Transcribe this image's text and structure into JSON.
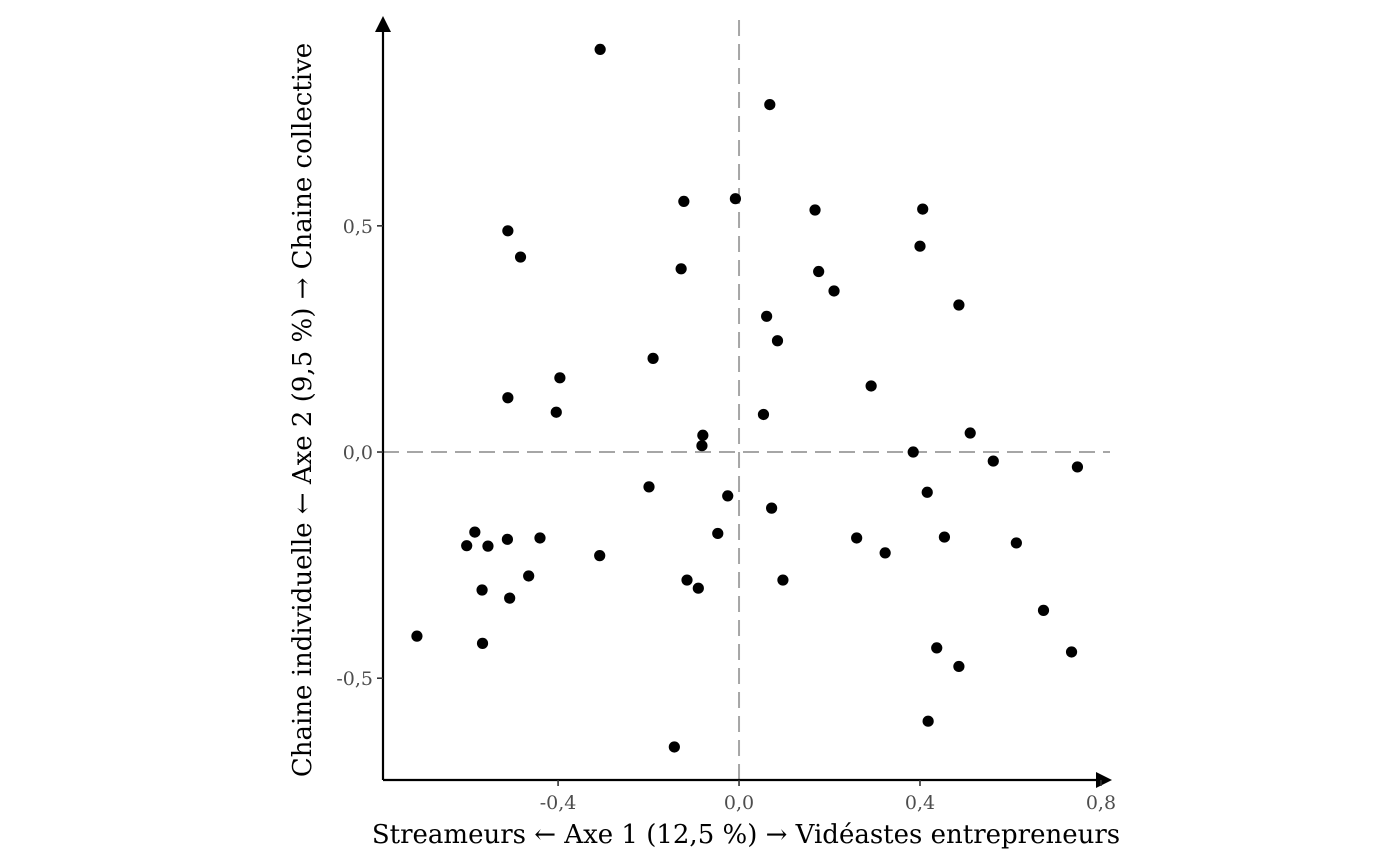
{
  "chart_data": {
    "type": "scatter",
    "title": "",
    "xlabel": "Streameurs ← Axe 1 (12,5 %) → Vidéastes entrepreneurs",
    "ylabel": "Chaine individuelle ← Axe 2 (9,5 %) → Chaine collective",
    "xlim": [
      -0.787,
      0.82
    ],
    "ylim": [
      -0.725,
      0.955
    ],
    "x_ticks": [
      -0.4,
      0.0,
      0.4,
      0.8
    ],
    "x_tick_labels": [
      "-0,4",
      "0,0",
      "0,4",
      "0,8"
    ],
    "y_ticks": [
      -0.5,
      0.0,
      0.5
    ],
    "y_tick_labels": [
      "-0,5",
      "0,0",
      "0,5"
    ],
    "reference_lines": {
      "x": 0.0,
      "y": 0.0,
      "style": "dashed"
    },
    "grid": false,
    "points": [
      {
        "x": -0.712,
        "y": -0.407
      },
      {
        "x": -0.602,
        "y": -0.207
      },
      {
        "x": -0.584,
        "y": -0.177
      },
      {
        "x": -0.568,
        "y": -0.305
      },
      {
        "x": -0.567,
        "y": -0.423
      },
      {
        "x": -0.555,
        "y": -0.208
      },
      {
        "x": -0.512,
        "y": -0.193
      },
      {
        "x": -0.511,
        "y": 0.12
      },
      {
        "x": -0.511,
        "y": 0.489
      },
      {
        "x": -0.507,
        "y": -0.323
      },
      {
        "x": -0.483,
        "y": 0.431
      },
      {
        "x": -0.465,
        "y": -0.274
      },
      {
        "x": -0.44,
        "y": -0.19
      },
      {
        "x": -0.404,
        "y": 0.088
      },
      {
        "x": -0.396,
        "y": 0.164
      },
      {
        "x": -0.308,
        "y": -0.229
      },
      {
        "x": -0.307,
        "y": 0.89
      },
      {
        "x": -0.199,
        "y": -0.077
      },
      {
        "x": -0.19,
        "y": 0.207
      },
      {
        "x": -0.143,
        "y": -0.652
      },
      {
        "x": -0.128,
        "y": 0.405
      },
      {
        "x": -0.122,
        "y": 0.554
      },
      {
        "x": -0.115,
        "y": -0.283
      },
      {
        "x": -0.09,
        "y": -0.301
      },
      {
        "x": -0.082,
        "y": 0.014
      },
      {
        "x": -0.08,
        "y": 0.037
      },
      {
        "x": -0.047,
        "y": -0.18
      },
      {
        "x": -0.025,
        "y": -0.097
      },
      {
        "x": -0.008,
        "y": 0.56
      },
      {
        "x": 0.054,
        "y": 0.083
      },
      {
        "x": 0.061,
        "y": 0.3
      },
      {
        "x": 0.068,
        "y": 0.768
      },
      {
        "x": 0.072,
        "y": -0.124
      },
      {
        "x": 0.085,
        "y": 0.246
      },
      {
        "x": 0.097,
        "y": -0.283
      },
      {
        "x": 0.168,
        "y": 0.535
      },
      {
        "x": 0.176,
        "y": 0.399
      },
      {
        "x": 0.21,
        "y": 0.356
      },
      {
        "x": 0.26,
        "y": -0.19
      },
      {
        "x": 0.292,
        "y": 0.146
      },
      {
        "x": 0.323,
        "y": -0.223
      },
      {
        "x": 0.385,
        "y": 0.0
      },
      {
        "x": 0.4,
        "y": 0.455
      },
      {
        "x": 0.406,
        "y": 0.537
      },
      {
        "x": 0.416,
        "y": -0.089
      },
      {
        "x": 0.418,
        "y": -0.595
      },
      {
        "x": 0.437,
        "y": -0.433
      },
      {
        "x": 0.454,
        "y": -0.188
      },
      {
        "x": 0.486,
        "y": 0.325
      },
      {
        "x": 0.486,
        "y": -0.474
      },
      {
        "x": 0.511,
        "y": 0.042
      },
      {
        "x": 0.562,
        "y": -0.02
      },
      {
        "x": 0.613,
        "y": -0.201
      },
      {
        "x": 0.673,
        "y": -0.35
      },
      {
        "x": 0.735,
        "y": -0.442
      },
      {
        "x": 0.748,
        "y": -0.033
      }
    ]
  }
}
